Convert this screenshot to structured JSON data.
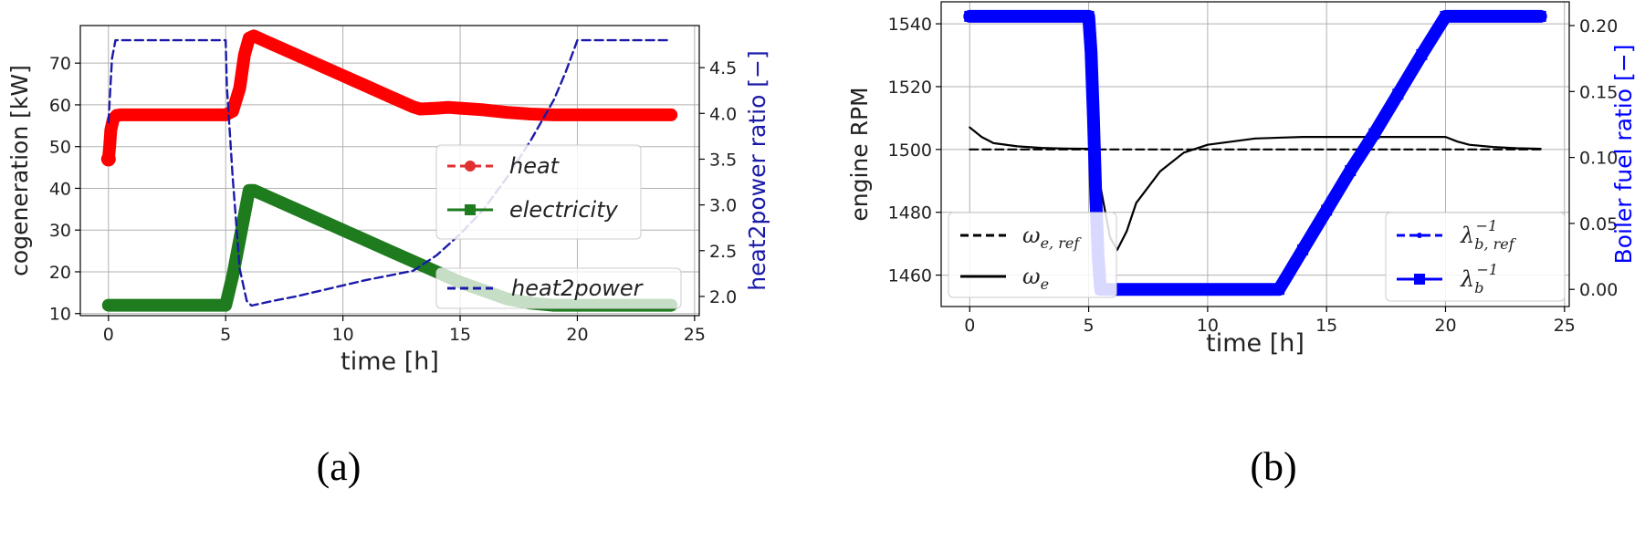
{
  "chart_data": [
    {
      "panel": "(a)",
      "type": "line",
      "xlabel": "time [h]",
      "ylabel": "cogeneration [kW]",
      "ylabel_right": "heat2power ratio [−]",
      "xlim": [
        -1.2,
        25.2
      ],
      "ylim": [
        9.5,
        79
      ],
      "ylim_right": [
        1.79,
        4.96
      ],
      "xticks": [
        0,
        5,
        10,
        15,
        20,
        25
      ],
      "yticks": [
        10,
        20,
        30,
        40,
        50,
        60,
        70
      ],
      "yticks_right": [
        2.0,
        2.5,
        3.0,
        3.5,
        4.0,
        4.5
      ],
      "grid": true,
      "legend_placement": "center-right",
      "legend_placement_right": "bottom-right",
      "series": [
        {
          "name": "heat",
          "color": "#ff0000",
          "axis": "left",
          "x": [
            0,
            0.05,
            0.1,
            0.2,
            0.35,
            0.5,
            1,
            2,
            3,
            4,
            5,
            5.3,
            5.6,
            5.8,
            6,
            6.2,
            7,
            8,
            9,
            10,
            11,
            12,
            13,
            13.3,
            14,
            14.5,
            15,
            16,
            17,
            18,
            19,
            20,
            21,
            22,
            23,
            24
          ],
          "y": [
            47,
            50,
            54,
            56.5,
            57.5,
            57.6,
            57.6,
            57.6,
            57.6,
            57.6,
            57.6,
            58.5,
            64,
            72,
            76,
            76.5,
            74.5,
            72,
            69.5,
            67,
            64.5,
            62,
            59.5,
            59,
            59.2,
            59.4,
            59.2,
            58.8,
            58.2,
            57.8,
            57.6,
            57.6,
            57.6,
            57.6,
            57.6,
            57.6
          ]
        },
        {
          "name": "electricity",
          "color": "#1e7b1e",
          "axis": "left",
          "x": [
            0,
            1,
            2,
            3,
            4,
            5,
            5.3,
            6,
            6.2,
            7,
            8,
            9,
            10,
            11,
            12,
            13,
            14,
            15,
            16,
            17,
            18,
            19,
            20,
            21,
            22,
            23,
            24
          ],
          "y": [
            12,
            12,
            12,
            12,
            12,
            12,
            19,
            39.5,
            39.5,
            37.5,
            35,
            32.5,
            30,
            27.5,
            25,
            22.5,
            20,
            17.5,
            15.5,
            13.5,
            12.5,
            12,
            12,
            12,
            12,
            12,
            12
          ]
        },
        {
          "name": "heat2power",
          "color": "#1a1aaa",
          "axis": "right",
          "dashed": true,
          "x": [
            0,
            0.15,
            0.3,
            1,
            2,
            3,
            4,
            5,
            5.05,
            5.3,
            5.6,
            5.9,
            6.1,
            7,
            8,
            9,
            10,
            11,
            12,
            13,
            14,
            15,
            16,
            17,
            18,
            19,
            19.5,
            20,
            20.2,
            21,
            22,
            23,
            24
          ],
          "y": [
            3.9,
            4.6,
            4.8,
            4.8,
            4.8,
            4.8,
            4.8,
            4.8,
            4.3,
            3.3,
            2.3,
            1.95,
            1.9,
            1.95,
            2.0,
            2.06,
            2.12,
            2.18,
            2.23,
            2.28,
            2.45,
            2.68,
            2.95,
            3.3,
            3.7,
            4.15,
            4.45,
            4.8,
            4.8,
            4.8,
            4.8,
            4.8,
            4.8
          ]
        }
      ]
    },
    {
      "panel": "(b)",
      "type": "line",
      "xlabel": "time [h]",
      "ylabel": "engine RPM",
      "ylabel_right": "Boiler fuel ratio [−]",
      "xlim": [
        -1.2,
        25.2
      ],
      "ylim": [
        1450,
        1547
      ],
      "ylim_right": [
        -0.013,
        0.218
      ],
      "xticks": [
        0,
        5,
        10,
        15,
        20,
        25
      ],
      "yticks": [
        1460,
        1480,
        1500,
        1520,
        1540
      ],
      "yticks_right": [
        0.0,
        0.05,
        0.1,
        0.15,
        0.2
      ],
      "grid": true,
      "legend_placement": "bottom-left",
      "legend_placement_right": "bottom-right",
      "series": [
        {
          "name": "ωe,ref",
          "color": "#000000",
          "axis": "left",
          "dashed": true,
          "x": [
            0,
            24
          ],
          "y": [
            1500,
            1500
          ]
        },
        {
          "name": "ωe",
          "color": "#000000",
          "axis": "left",
          "x": [
            0,
            0.5,
            1,
            2,
            3,
            4,
            5,
            5.3,
            5.6,
            5.9,
            6.2,
            6.6,
            7,
            8,
            9,
            10,
            12,
            14,
            16,
            18,
            19.5,
            20,
            20.5,
            21,
            22,
            23,
            24
          ],
          "y": [
            1507,
            1504,
            1502,
            1501,
            1500.5,
            1500.3,
            1500.2,
            1496,
            1484,
            1472,
            1468,
            1474,
            1483,
            1493,
            1499,
            1501.5,
            1503.5,
            1504,
            1504,
            1504,
            1504,
            1504,
            1502.5,
            1501.5,
            1500.8,
            1500.4,
            1500.2
          ]
        },
        {
          "name": "λb,ref⁻¹",
          "color": "#0000ff",
          "axis": "right",
          "dashed": true,
          "x": [
            0,
            5,
            5.1,
            5.5,
            13,
            20,
            24
          ],
          "y": [
            0.207,
            0.207,
            0.18,
            0.0,
            0.0,
            0.207,
            0.207
          ]
        },
        {
          "name": "λb⁻¹",
          "color": "#0000ff",
          "axis": "right",
          "x": [
            0,
            1,
            2,
            3,
            4,
            5,
            5.1,
            5.2,
            5.3,
            5.4,
            5.5,
            6,
            7,
            8,
            9,
            10,
            11,
            12,
            13,
            14,
            15,
            16,
            17,
            18,
            19,
            20,
            21,
            22,
            23,
            24
          ],
          "y": [
            0.207,
            0.207,
            0.207,
            0.207,
            0.207,
            0.207,
            0.18,
            0.13,
            0.07,
            0.025,
            0.0,
            0.0,
            0.0,
            0.0,
            0.0,
            0.0,
            0.0,
            0.0,
            0.0,
            0.03,
            0.06,
            0.09,
            0.118,
            0.148,
            0.178,
            0.207,
            0.207,
            0.207,
            0.207,
            0.207
          ]
        }
      ]
    }
  ],
  "legend_a": {
    "heat": "heat",
    "electricity": "electricity",
    "heat2power": "heat2power"
  },
  "captions": {
    "a": "(a)",
    "b": "(b)"
  },
  "colors": {
    "heat": "#ff0000",
    "electricity": "#1e7b1e",
    "heat2power": "#1a1aaa",
    "boiler": "#0000ff",
    "rpm": "#000000",
    "right_axis_a": "#1a1aaa",
    "right_axis_b": "#0000ff"
  }
}
